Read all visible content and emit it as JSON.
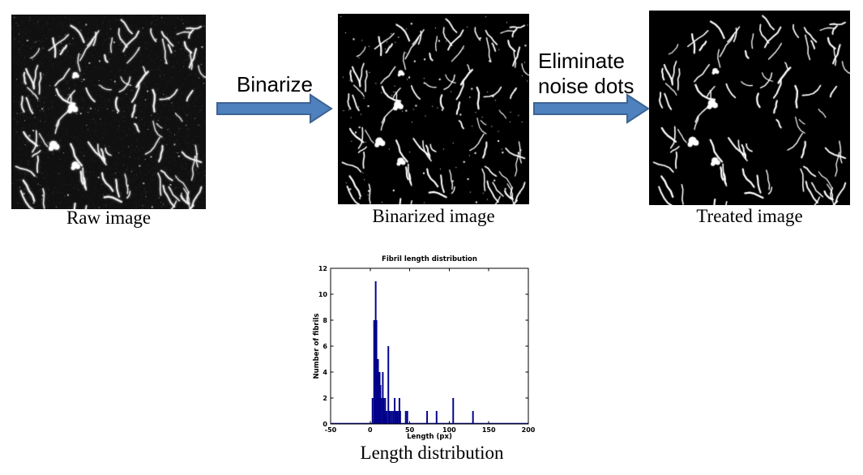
{
  "flow": {
    "images": [
      {
        "caption": "Raw image"
      },
      {
        "caption": "Binarized image"
      },
      {
        "caption": "Treated image"
      }
    ],
    "arrows": [
      {
        "label": "Binarize"
      },
      {
        "label": "Eliminate\nnoise dots"
      }
    ],
    "arrow_fill": "#4e81bd",
    "arrow_stroke": "#3d6494"
  },
  "figure_caption": "Length distribution",
  "chart_data": {
    "type": "bar",
    "title": "Fibril length distribution",
    "xlabel": "Length (px)",
    "ylabel": "Number of fibrils",
    "xlim": [
      -50,
      200
    ],
    "ylim": [
      0,
      12
    ],
    "x_ticks": [
      -50,
      0,
      50,
      100,
      150,
      200
    ],
    "y_ticks": [
      0,
      2,
      4,
      6,
      8,
      10,
      12
    ],
    "grid": false,
    "bar_color": "#00008b",
    "bar_width_units": 2,
    "bars": [
      [
        3,
        2
      ],
      [
        5,
        8
      ],
      [
        6,
        8
      ],
      [
        7,
        11
      ],
      [
        8,
        8
      ],
      [
        9,
        5
      ],
      [
        10,
        5
      ],
      [
        11,
        4
      ],
      [
        12,
        4
      ],
      [
        13,
        3
      ],
      [
        14,
        2
      ],
      [
        16,
        4
      ],
      [
        17,
        2
      ],
      [
        18,
        1
      ],
      [
        19,
        2
      ],
      [
        20,
        1
      ],
      [
        21,
        1
      ],
      [
        23,
        6
      ],
      [
        24,
        1
      ],
      [
        25,
        1
      ],
      [
        27,
        1
      ],
      [
        29,
        1
      ],
      [
        31,
        2
      ],
      [
        33,
        1
      ],
      [
        35,
        1
      ],
      [
        37,
        2
      ],
      [
        38,
        1
      ],
      [
        45,
        1
      ],
      [
        47,
        1
      ],
      [
        72,
        1
      ],
      [
        84,
        1
      ],
      [
        105,
        2
      ],
      [
        130,
        1
      ]
    ]
  }
}
